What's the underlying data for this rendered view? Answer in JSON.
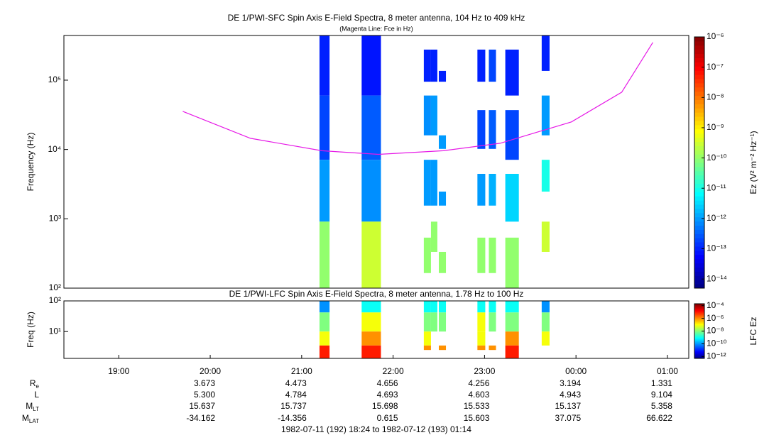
{
  "chart_data": [
    {
      "type": "spectrogram",
      "title": "DE 1/PWI-SFC  Spin Axis E-Field Spectra, 8 meter antenna, 104 Hz to 409 kHz",
      "subtitle": "(Magenta Line: Fce in Hz)",
      "ylabel": "Frequency (Hz)",
      "xlim": [
        18.4,
        25.2333
      ],
      "ylim": [
        100,
        441000
      ],
      "log_y": true,
      "yticks": [
        {
          "value": 100,
          "label": "10²"
        },
        {
          "value": 1000,
          "label": "10³"
        },
        {
          "value": 10000,
          "label": "10⁴"
        },
        {
          "value": 100000,
          "label": "10⁵"
        }
      ],
      "colormap": "jet",
      "zlabel": "Ez (V² m⁻² Hz⁻¹)",
      "zlim": [
        5e-15,
        1e-06
      ],
      "zticks": [
        {
          "value": 1e-06,
          "label": "10⁻⁶"
        },
        {
          "value": 1e-07,
          "label": "10⁻⁷"
        },
        {
          "value": 1e-08,
          "label": "10⁻⁸"
        },
        {
          "value": 1e-09,
          "label": "10⁻⁹"
        },
        {
          "value": 1e-10,
          "label": "10⁻¹⁰"
        },
        {
          "value": 1e-11,
          "label": "10⁻¹¹"
        },
        {
          "value": 1e-12,
          "label": "10⁻¹²"
        },
        {
          "value": 1e-13,
          "label": "10⁻¹³"
        },
        {
          "value": 1e-14,
          "label": "10⁻¹⁴"
        }
      ],
      "columns": [
        {
          "x0": 21.195,
          "x1": 21.305,
          "bands": [
            [
              60000,
              441000,
              1e-13
            ],
            [
              7100,
              60000,
              2e-13
            ],
            [
              910,
              7100,
              1e-12
            ],
            [
              100,
              910,
              1e-10
            ]
          ]
        },
        {
          "x0": 21.656,
          "x1": 21.867,
          "bands": [
            [
              60000,
              441000,
              8e-14
            ],
            [
              7100,
              60000,
              3e-13
            ],
            [
              910,
              7100,
              8e-13
            ],
            [
              100,
              910,
              3e-10
            ]
          ]
        },
        {
          "x0": 22.336,
          "x1": 22.414,
          "bands": [
            [
              95000,
              276000,
              1e-13
            ],
            [
              16000,
              60000,
              8e-13
            ],
            [
              1550,
              7100,
              1e-12
            ],
            [
              165,
              535,
              1e-10
            ]
          ]
        },
        {
          "x0": 22.414,
          "x1": 22.484,
          "bands": [
            [
              95000,
              276000,
              1e-13
            ],
            [
              16000,
              60000,
              1e-12
            ],
            [
              1550,
              7100,
              1e-12
            ],
            [
              333,
              910,
              1e-10
            ]
          ]
        },
        {
          "x0": 22.5,
          "x1": 22.578,
          "bands": [
            [
              95000,
              136000,
              1e-13
            ],
            [
              10200,
              16000,
              1e-12
            ],
            [
              1550,
              2470,
              1e-12
            ],
            [
              165,
              333,
              1e-10
            ]
          ]
        },
        {
          "x0": 22.922,
          "x1": 23.008,
          "bands": [
            [
              95000,
              276000,
              1e-13
            ],
            [
              10200,
              37000,
              2e-13
            ],
            [
              1550,
              4450,
              1e-12
            ],
            [
              165,
              535,
              1e-10
            ]
          ]
        },
        {
          "x0": 23.047,
          "x1": 23.125,
          "bands": [
            [
              95000,
              276000,
              2e-13
            ],
            [
              10200,
              37000,
              3e-13
            ],
            [
              1550,
              4450,
              1.5e-12
            ],
            [
              165,
              535,
              1e-10
            ]
          ]
        },
        {
          "x0": 23.227,
          "x1": 23.375,
          "bands": [
            [
              60000,
              276000,
              1e-13
            ],
            [
              7100,
              37000,
              2e-13
            ],
            [
              910,
              4450,
              3e-12
            ],
            [
              100,
              535,
              1e-10
            ]
          ]
        },
        {
          "x0": 23.625,
          "x1": 23.711,
          "bands": [
            [
              136000,
              441000,
              1e-13
            ],
            [
              16000,
              60000,
              1e-12
            ],
            [
              2470,
              7100,
              1e-11
            ],
            [
              333,
              910,
              3e-10
            ]
          ]
        }
      ],
      "line": {
        "color": "#e619e6",
        "x": [
          19.7,
          20.44,
          21.22,
          21.84,
          22.55,
          23.17,
          23.95,
          24.5,
          24.84
        ],
        "values": [
          35500,
          14500,
          9600,
          8500,
          9600,
          12300,
          25000,
          67000,
          350000
        ]
      }
    },
    {
      "type": "spectrogram",
      "title": "DE 1/PWI-LFC  Spin Axis E-Field Spectra, 8 meter antenna, 1.78 Hz to 100 Hz",
      "ylabel": "Freq (Hz)",
      "xlim": [
        18.4,
        25.2333
      ],
      "xticks": [
        {
          "value": 19,
          "label": "19:00"
        },
        {
          "value": 20,
          "label": "20:00"
        },
        {
          "value": 21,
          "label": "21:00"
        },
        {
          "value": 22,
          "label": "22:00"
        },
        {
          "value": 23,
          "label": "23:00"
        },
        {
          "value": 24,
          "label": "00:00"
        },
        {
          "value": 25,
          "label": "01:00"
        }
      ],
      "ylim": [
        1.33,
        100
      ],
      "log_y": true,
      "yticks": [
        {
          "value": 10,
          "label": "10¹"
        },
        {
          "value": 100,
          "label": "10²"
        }
      ],
      "colormap": "jet",
      "zlabel": "LFC Ez",
      "zlim": [
        5e-13,
        0.0002
      ],
      "zticks": [
        {
          "value": 0.0001,
          "label": "10⁻⁴"
        },
        {
          "value": 1e-06,
          "label": "10⁻⁶"
        },
        {
          "value": 1e-08,
          "label": "10⁻⁸"
        },
        {
          "value": 1e-10,
          "label": "10⁻¹⁰"
        },
        {
          "value": 1e-12,
          "label": "10⁻¹²"
        }
      ],
      "columns": [
        {
          "x0": 21.195,
          "x1": 21.305,
          "bands": [
            [
              42,
              100,
              1e-10
            ],
            [
              10,
              42,
              1e-08
            ],
            [
              3.5,
              10,
              1e-07
            ],
            [
              1.33,
              3.5,
              1e-05
            ]
          ]
        },
        {
          "x0": 21.656,
          "x1": 21.867,
          "bands": [
            [
              42,
              100,
              1e-09
            ],
            [
              10,
              42,
              1e-07
            ],
            [
              3.5,
              10,
              1e-06
            ],
            [
              1.33,
              3.5,
              1e-05
            ]
          ]
        },
        {
          "x0": 22.336,
          "x1": 22.414,
          "bands": [
            [
              42,
              100,
              1e-09
            ],
            [
              10,
              42,
              1e-08
            ],
            [
              3.5,
              10,
              1e-07
            ],
            [
              2.5,
              3.5,
              1e-06
            ]
          ]
        },
        {
          "x0": 22.414,
          "x1": 22.484,
          "bands": [
            [
              42,
              100,
              1e-09
            ],
            [
              10,
              42,
              1e-08
            ]
          ]
        },
        {
          "x0": 22.5,
          "x1": 22.578,
          "bands": [
            [
              42,
              100,
              1e-09
            ],
            [
              10,
              42,
              1e-08
            ],
            [
              2.5,
              3.5,
              1e-06
            ]
          ]
        },
        {
          "x0": 22.922,
          "x1": 23.008,
          "bands": [
            [
              42,
              100,
              1e-09
            ],
            [
              10,
              42,
              1e-07
            ],
            [
              3.5,
              10,
              1e-07
            ],
            [
              2.5,
              3.5,
              1e-06
            ]
          ]
        },
        {
          "x0": 23.047,
          "x1": 23.125,
          "bands": [
            [
              42,
              100,
              1e-09
            ],
            [
              10,
              42,
              1e-08
            ],
            [
              2.5,
              3.5,
              1e-06
            ]
          ]
        },
        {
          "x0": 23.227,
          "x1": 23.375,
          "bands": [
            [
              42,
              100,
              1e-09
            ],
            [
              10,
              42,
              1e-08
            ],
            [
              3.5,
              10,
              1e-06
            ],
            [
              1.33,
              3.5,
              1e-05
            ]
          ]
        },
        {
          "x0": 23.625,
          "x1": 23.711,
          "bands": [
            [
              42,
              100,
              1e-10
            ],
            [
              10,
              42,
              1e-08
            ],
            [
              3.5,
              10,
              1e-07
            ]
          ]
        }
      ]
    }
  ],
  "ephemeris": {
    "rows": [
      {
        "label": "R",
        "sub": "e",
        "values": [
          null,
          "3.673",
          "4.473",
          "4.656",
          "4.256",
          "3.194",
          "1.331"
        ]
      },
      {
        "label": "L",
        "sub": null,
        "values": [
          null,
          "5.300",
          "4.784",
          "4.693",
          "4.603",
          "4.943",
          "9.104"
        ]
      },
      {
        "label": "M",
        "sub": "LT",
        "values": [
          null,
          "15.637",
          "15.737",
          "15.698",
          "15.533",
          "15.137",
          "5.358"
        ]
      },
      {
        "label": "M",
        "sub": "LAT",
        "values": [
          null,
          "-34.162",
          "-14.356",
          "0.615",
          "15.603",
          "37.075",
          "66.622"
        ]
      }
    ],
    "footer": "1982-07-11 (192) 18:24 to 1982-07-12 (193) 01:14"
  }
}
